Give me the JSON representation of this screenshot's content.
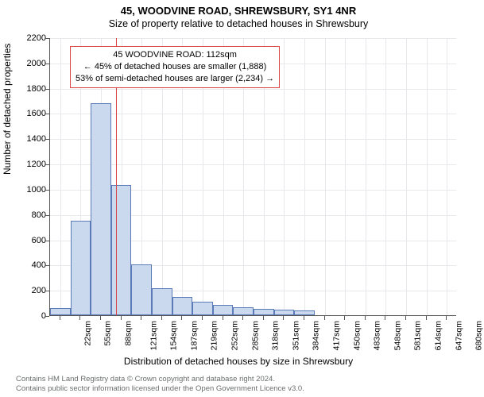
{
  "title": "45, WOODVINE ROAD, SHREWSBURY, SY1 4NR",
  "subtitle": "Size of property relative to detached houses in Shrewsbury",
  "y_axis_label": "Number of detached properties",
  "x_axis_label": "Distribution of detached houses by size in Shrewsbury",
  "chart": {
    "type": "histogram",
    "ylim": [
      0,
      2200
    ],
    "ytick_step": 200,
    "x_categories": [
      "22sqm",
      "55sqm",
      "88sqm",
      "121sqm",
      "154sqm",
      "187sqm",
      "219sqm",
      "252sqm",
      "285sqm",
      "318sqm",
      "351sqm",
      "384sqm",
      "417sqm",
      "450sqm",
      "483sqm",
      "548sqm",
      "581sqm",
      "614sqm",
      "647sqm",
      "680sqm"
    ],
    "values": [
      55,
      745,
      1680,
      1030,
      400,
      215,
      145,
      105,
      80,
      65,
      50,
      45,
      40,
      0,
      0,
      0,
      0,
      0,
      0,
      0
    ],
    "bar_fill": "#cbd9ee",
    "bar_stroke": "#5a7bb8",
    "bar_width_ratio": 1.0,
    "grid_color": "#e8e8ec",
    "background_color": "#ffffff",
    "axis_color": "#555555",
    "tick_font_size": 11,
    "reference_line": {
      "value_sqm": 112,
      "color": "#d94545"
    }
  },
  "annotation": {
    "lines": [
      "45 WOODVINE ROAD: 112sqm",
      "← 45% of detached houses are smaller (1,888)",
      "53% of semi-detached houses are larger (2,234) →"
    ],
    "border_color": "#d94545",
    "background": "#ffffff",
    "font_size": 11
  },
  "footer": {
    "line1": "Contains HM Land Registry data © Crown copyright and database right 2024.",
    "line2": "Contains public sector information licensed under the Open Government Licence v3.0.",
    "color": "#6a6e6d"
  }
}
